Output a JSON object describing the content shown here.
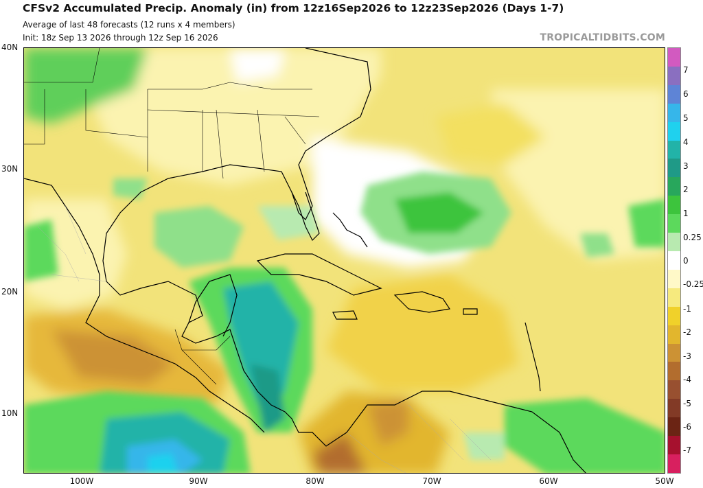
{
  "header": {
    "title": "CFSv2 Accumulated Precip. Anomaly (in) from 12z16Sep2026 to 12z23Sep2026 (Days 1-7)",
    "subtitle1": "Average of last 48 forecasts (12 runs x 4 members)",
    "subtitle2": "Init: 18z Sep 13 2026 through 12z Sep 16 2026"
  },
  "credit": "TROPICALTIDBITS.COM",
  "axes": {
    "lat_labels": [
      "40N",
      "30N",
      "20N",
      "10N"
    ],
    "lon_labels": [
      "100W",
      "90W",
      "80W",
      "70W",
      "60W",
      "50W"
    ]
  },
  "colorbar": {
    "labels": [
      "7",
      "6",
      "5",
      "4",
      "3",
      "2",
      "1",
      "0.25",
      "0",
      "-0.25",
      "-1",
      "-2",
      "-3",
      "-4",
      "-5",
      "-6",
      "-7"
    ],
    "colors": [
      "#d25ac0",
      "#8a6fc0",
      "#5e84d6",
      "#36b6ea",
      "#1fd1ee",
      "#22b3a8",
      "#1f9a87",
      "#28a75c",
      "#3dc43d",
      "#5cd95c",
      "#b8eab0",
      "#ffffff",
      "#fff9c8",
      "#f6ea7e",
      "#f0d12a",
      "#e2b62d",
      "#cc9234",
      "#b26d2e",
      "#985030",
      "#823a26",
      "#6b2414",
      "#a6112e",
      "#d8205f"
    ],
    "colors_meaning": "top to bottom, wet (purple/blue/green) to dry (yellow/brown/red)"
  },
  "map": {
    "region": "Gulf of Mexico, Caribbean Sea and western Atlantic",
    "lat_range": [
      5,
      40
    ],
    "lon_range": [
      -105,
      -50
    ],
    "features": [
      {
        "name": "wet anomaly",
        "area": "western Caribbean / Central America coast",
        "level": "2 to 4 in"
      },
      {
        "name": "wet anomaly",
        "area": "eastern Pacific south of Mexico",
        "level": "3 to 5 in"
      },
      {
        "name": "wet anomaly",
        "area": "Atlantic east of Bahamas",
        "level": "1 in"
      },
      {
        "name": "dry anomaly",
        "area": "southern Mexico Pacific coast",
        "level": "-2 to -3 in"
      },
      {
        "name": "dry anomaly",
        "area": "northern Colombia / Venezuela",
        "level": "-2 to -4 in"
      }
    ]
  }
}
